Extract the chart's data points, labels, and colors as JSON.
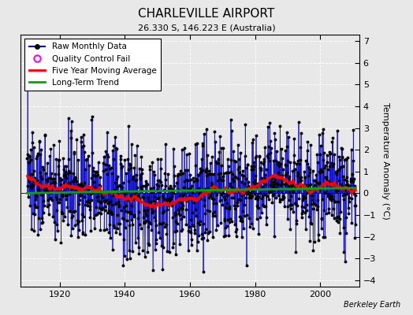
{
  "title": "CHARLEVILLE AIRPORT",
  "subtitle": "26.330 S, 146.223 E (Australia)",
  "ylabel": "Temperature Anomaly (°C)",
  "credit": "Berkeley Earth",
  "xlim": [
    1908,
    2012
  ],
  "ylim": [
    -4.3,
    7.3
  ],
  "yticks": [
    -4,
    -3,
    -2,
    -1,
    0,
    1,
    2,
    3,
    4,
    5,
    6,
    7
  ],
  "xticks": [
    1920,
    1940,
    1960,
    1980,
    2000
  ],
  "start_year": 1910,
  "end_year": 2010,
  "seed": 137,
  "bg_color": "#e8e8e8",
  "line_color": "#0000cc",
  "dot_color": "#000000",
  "ma_color": "#ff0000",
  "trend_color": "#00aa00",
  "qc_color": "#ff00ff",
  "legend_loc": "upper left",
  "title_fontsize": 11,
  "subtitle_fontsize": 8,
  "tick_fontsize": 8,
  "ylabel_fontsize": 8
}
